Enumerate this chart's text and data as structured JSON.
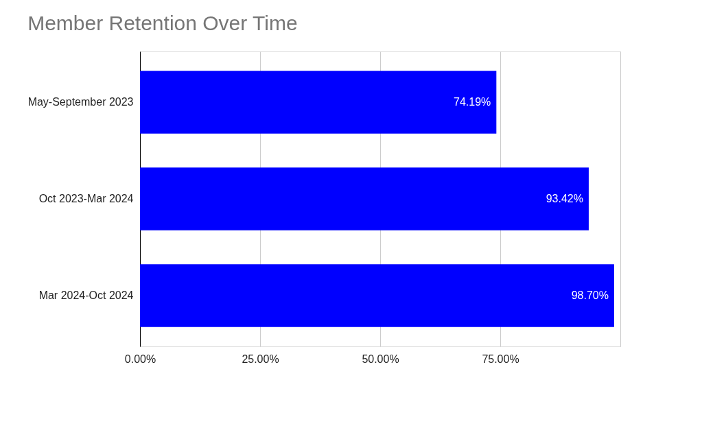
{
  "chart_data": {
    "type": "bar",
    "orientation": "horizontal",
    "title": "Member Retention Over Time",
    "categories": [
      "May-September 2023",
      "Oct 2023-Mar 2024",
      "Mar 2024-Oct 2024"
    ],
    "values": [
      74.19,
      93.42,
      98.7
    ],
    "value_labels": [
      "74.19%",
      "93.42%",
      "98.70%"
    ],
    "color": "#0000ff",
    "xlim": [
      0,
      100
    ],
    "xticks": [
      {
        "value": 0,
        "label": "0.00%"
      },
      {
        "value": 25,
        "label": "25.00%"
      },
      {
        "value": 50,
        "label": "50.00%"
      },
      {
        "value": 75,
        "label": "75.00%"
      },
      {
        "value": 100,
        "label": null
      }
    ],
    "grid": "x"
  }
}
